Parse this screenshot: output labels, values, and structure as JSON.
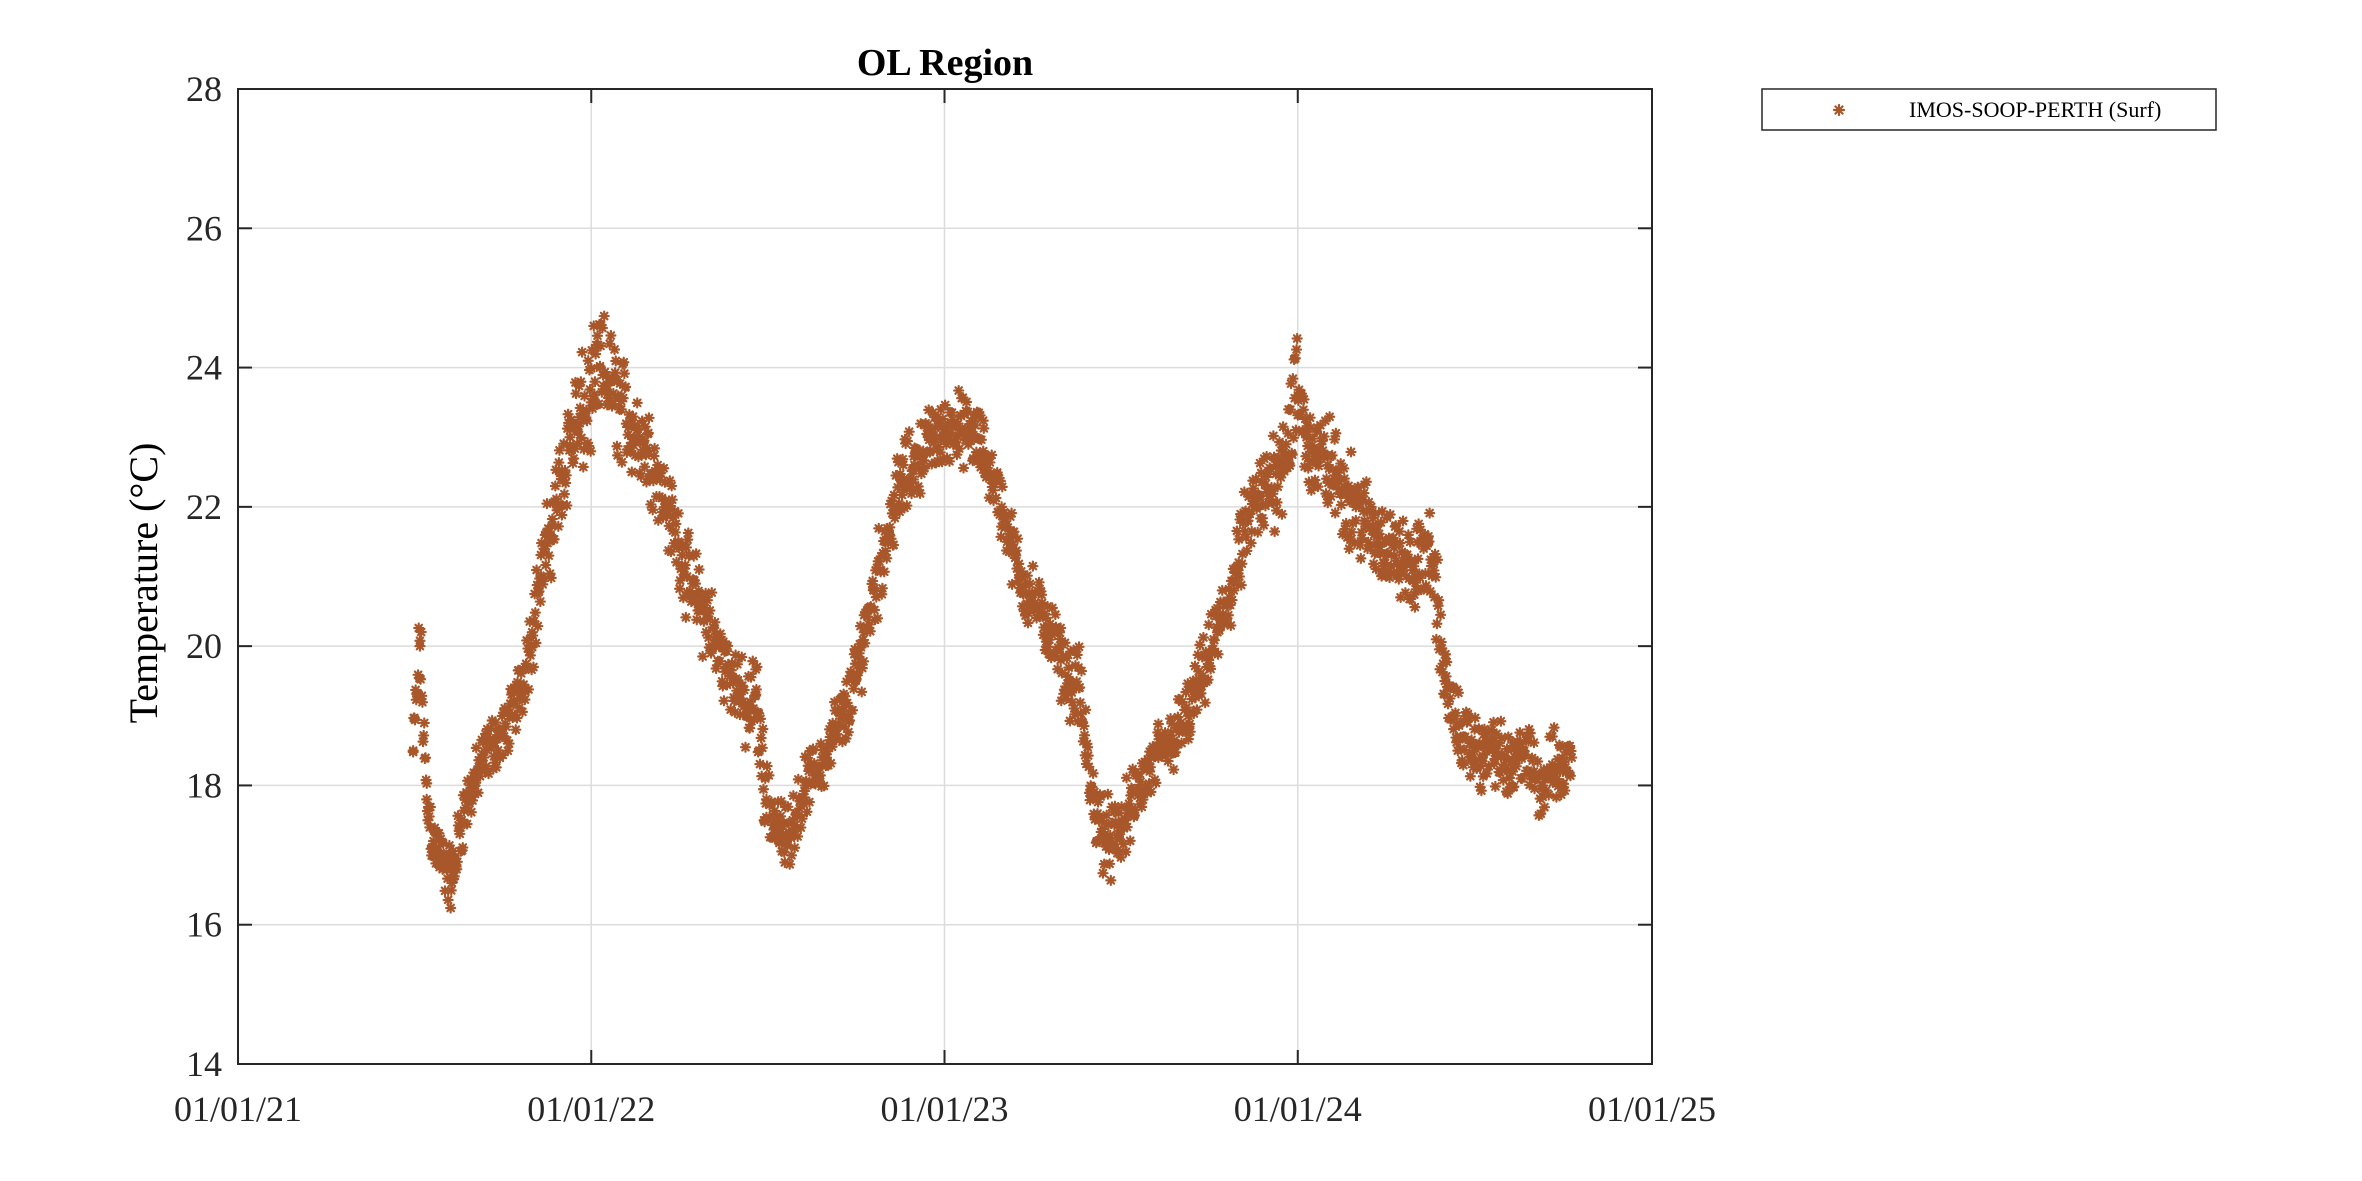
{
  "chart_data": {
    "type": "scatter",
    "title": "OL Region",
    "xlabel": "",
    "ylabel": "Temperature (°C)",
    "xlim": [
      "2021-01-01",
      "2025-01-01"
    ],
    "ylim": [
      14,
      28
    ],
    "x_ticks": [
      "01/01/21",
      "01/01/22",
      "01/01/23",
      "01/01/24",
      "01/01/25"
    ],
    "y_ticks": [
      14,
      16,
      18,
      20,
      22,
      24,
      26,
      28
    ],
    "grid": true,
    "legend_position": "outside-top-right",
    "series": [
      {
        "name": "IMOS-SOOP-PERTH (Surf)",
        "color": "#A8572A",
        "marker": "asterisk",
        "x": [
          "2021-07-01",
          "2021-07-08",
          "2021-07-15",
          "2021-07-22",
          "2021-08-01",
          "2021-08-10",
          "2021-08-20",
          "2021-09-01",
          "2021-09-10",
          "2021-09-20",
          "2021-10-01",
          "2021-10-10",
          "2021-10-20",
          "2021-11-01",
          "2021-11-10",
          "2021-11-20",
          "2021-12-01",
          "2021-12-10",
          "2021-12-20",
          "2022-01-01",
          "2022-01-10",
          "2022-01-20",
          "2022-02-01",
          "2022-02-10",
          "2022-02-20",
          "2022-03-01",
          "2022-03-10",
          "2022-03-20",
          "2022-04-01",
          "2022-04-10",
          "2022-04-20",
          "2022-05-01",
          "2022-05-10",
          "2022-05-20",
          "2022-06-01",
          "2022-06-10",
          "2022-06-20",
          "2022-07-01",
          "2022-07-10",
          "2022-07-20",
          "2022-08-01",
          "2022-08-10",
          "2022-08-20",
          "2022-09-01",
          "2022-09-10",
          "2022-09-20",
          "2022-10-01",
          "2022-10-10",
          "2022-10-20",
          "2022-11-01",
          "2022-11-10",
          "2022-11-20",
          "2022-12-01",
          "2022-12-10",
          "2022-12-20",
          "2023-01-01",
          "2023-01-10",
          "2023-01-20",
          "2023-02-01",
          "2023-02-10",
          "2023-02-20",
          "2023-03-01",
          "2023-03-10",
          "2023-03-20",
          "2023-04-01",
          "2023-04-10",
          "2023-04-20",
          "2023-05-01",
          "2023-05-10",
          "2023-05-20",
          "2023-06-01",
          "2023-06-10",
          "2023-06-20",
          "2023-07-01",
          "2023-07-10",
          "2023-07-20",
          "2023-08-01",
          "2023-08-10",
          "2023-08-20",
          "2023-09-01",
          "2023-09-10",
          "2023-09-20",
          "2023-10-01",
          "2023-10-10",
          "2023-10-20",
          "2023-11-01",
          "2023-11-10",
          "2023-11-20",
          "2023-12-01",
          "2023-12-10",
          "2023-12-20",
          "2024-01-01",
          "2024-01-10",
          "2024-01-20",
          "2024-02-01",
          "2024-02-10",
          "2024-02-20",
          "2024-03-01",
          "2024-03-10",
          "2024-03-20",
          "2024-04-01",
          "2024-04-10",
          "2024-04-20",
          "2024-05-01",
          "2024-05-10",
          "2024-05-20",
          "2024-06-01",
          "2024-06-10",
          "2024-06-20",
          "2024-07-01",
          "2024-07-10",
          "2024-07-20",
          "2024-08-01",
          "2024-08-10",
          "2024-08-20",
          "2024-09-01",
          "2024-09-10",
          "2024-09-20",
          "2024-10-01",
          "2024-10-10"
        ],
        "y": [
          18.5,
          20.0,
          17.8,
          17.2,
          16.9,
          16.6,
          17.5,
          18.0,
          18.3,
          18.6,
          18.7,
          19.0,
          19.4,
          20.2,
          21.0,
          21.6,
          22.4,
          23.0,
          23.2,
          23.5,
          24.0,
          23.8,
          23.4,
          23.2,
          23.0,
          22.8,
          22.5,
          22.0,
          21.5,
          21.0,
          20.7,
          20.4,
          20.0,
          19.7,
          19.5,
          19.0,
          19.3,
          17.8,
          17.5,
          17.2,
          17.6,
          18.0,
          18.2,
          18.4,
          18.8,
          19.0,
          19.5,
          20.2,
          20.8,
          21.5,
          22.0,
          22.4,
          22.6,
          22.8,
          23.0,
          23.0,
          23.2,
          23.1,
          23.0,
          22.8,
          22.4,
          22.0,
          21.5,
          21.0,
          20.7,
          20.5,
          20.2,
          19.8,
          19.5,
          19.4,
          17.9,
          17.5,
          17.2,
          17.3,
          17.6,
          17.9,
          18.2,
          18.4,
          18.6,
          18.8,
          19.0,
          19.4,
          19.8,
          20.2,
          20.6,
          21.2,
          21.8,
          22.0,
          22.2,
          22.6,
          22.9,
          23.6,
          23.0,
          22.7,
          22.6,
          22.4,
          22.2,
          22.0,
          21.8,
          21.6,
          21.5,
          21.3,
          21.2,
          21.0,
          21.4,
          21.2,
          19.5,
          19.0,
          18.7,
          18.5,
          18.4,
          18.6,
          18.3,
          18.2,
          18.5,
          18.2,
          18.0,
          18.3,
          18.2,
          18.4
        ],
        "spread": [
          0.5,
          0.8,
          0.6,
          0.6,
          0.5,
          0.6,
          0.6,
          0.5,
          0.5,
          0.5,
          0.5,
          0.5,
          0.6,
          0.7,
          0.7,
          0.8,
          0.9,
          1.0,
          1.1,
          1.0,
          1.0,
          1.0,
          1.0,
          0.9,
          0.8,
          0.8,
          0.7,
          0.7,
          0.7,
          0.7,
          0.8,
          0.8,
          0.7,
          0.7,
          0.6,
          0.7,
          0.8,
          0.7,
          0.6,
          0.6,
          0.5,
          0.5,
          0.5,
          0.5,
          0.6,
          0.6,
          0.6,
          0.7,
          0.7,
          0.7,
          0.7,
          0.7,
          0.6,
          0.6,
          0.6,
          0.6,
          0.6,
          0.6,
          0.6,
          0.6,
          0.5,
          0.6,
          0.6,
          0.6,
          0.6,
          0.5,
          0.6,
          0.6,
          0.6,
          0.7,
          0.8,
          0.7,
          0.7,
          0.6,
          0.6,
          0.6,
          0.6,
          0.6,
          0.6,
          0.6,
          0.6,
          0.6,
          0.6,
          0.7,
          0.7,
          0.7,
          0.7,
          0.8,
          0.9,
          1.0,
          1.0,
          1.1,
          0.9,
          0.9,
          0.9,
          0.8,
          0.8,
          0.8,
          0.8,
          0.8,
          0.8,
          0.7,
          0.7,
          0.7,
          0.8,
          0.8,
          0.7,
          0.6,
          0.6,
          0.6,
          0.6,
          0.6,
          0.6,
          0.6,
          0.6,
          0.6,
          0.6,
          0.6,
          0.6,
          0.6
        ]
      }
    ]
  }
}
